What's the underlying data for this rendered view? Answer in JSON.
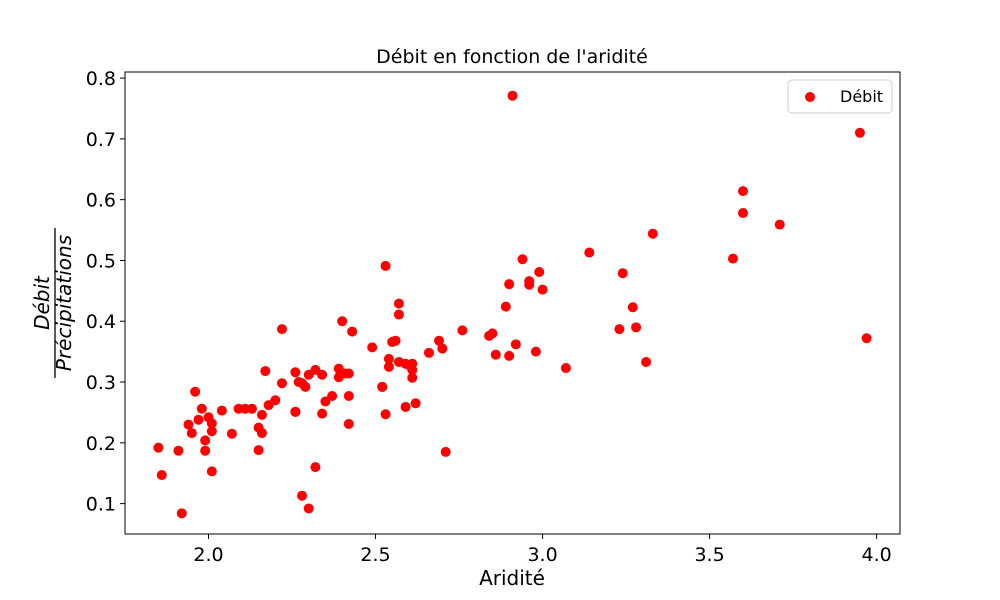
{
  "chart_data": {
    "type": "scatter",
    "title": "Débit en fonction de l'aridité",
    "xlabel": "Aridité",
    "ylabel": {
      "numerator": "Débit",
      "denominator": "Précipitations"
    },
    "xlim": [
      1.75,
      4.07
    ],
    "ylim": [
      0.05,
      0.81
    ],
    "xticks": [
      2.0,
      2.5,
      3.0,
      3.5,
      4.0
    ],
    "xtick_labels": [
      "2.0",
      "2.5",
      "3.0",
      "3.5",
      "4.0"
    ],
    "yticks": [
      0.1,
      0.2,
      0.3,
      0.4,
      0.5,
      0.6,
      0.7,
      0.8
    ],
    "ytick_labels": [
      "0.1",
      "0.2",
      "0.3",
      "0.4",
      "0.5",
      "0.6",
      "0.7",
      "0.8"
    ],
    "grid": false,
    "legend": {
      "position": "top-right",
      "entries": [
        "Débit"
      ]
    },
    "series": [
      {
        "name": "Débit",
        "color": "#ff0000",
        "points": [
          [
            1.85,
            0.192
          ],
          [
            1.86,
            0.147
          ],
          [
            1.91,
            0.187
          ],
          [
            1.92,
            0.084
          ],
          [
            1.94,
            0.23
          ],
          [
            1.95,
            0.216
          ],
          [
            1.96,
            0.284
          ],
          [
            1.97,
            0.238
          ],
          [
            1.98,
            0.256
          ],
          [
            1.99,
            0.187
          ],
          [
            1.99,
            0.204
          ],
          [
            2.0,
            0.242
          ],
          [
            2.01,
            0.153
          ],
          [
            2.01,
            0.232
          ],
          [
            2.01,
            0.219
          ],
          [
            2.04,
            0.253
          ],
          [
            2.07,
            0.215
          ],
          [
            2.09,
            0.256
          ],
          [
            2.11,
            0.256
          ],
          [
            2.13,
            0.256
          ],
          [
            2.15,
            0.225
          ],
          [
            2.15,
            0.188
          ],
          [
            2.16,
            0.246
          ],
          [
            2.16,
            0.216
          ],
          [
            2.17,
            0.318
          ],
          [
            2.18,
            0.262
          ],
          [
            2.2,
            0.27
          ],
          [
            2.22,
            0.298
          ],
          [
            2.22,
            0.387
          ],
          [
            2.26,
            0.316
          ],
          [
            2.26,
            0.251
          ],
          [
            2.26,
            0.251
          ],
          [
            2.27,
            0.3
          ],
          [
            2.28,
            0.113
          ],
          [
            2.28,
            0.298
          ],
          [
            2.29,
            0.292
          ],
          [
            2.3,
            0.092
          ],
          [
            2.3,
            0.312
          ],
          [
            2.32,
            0.16
          ],
          [
            2.32,
            0.32
          ],
          [
            2.34,
            0.312
          ],
          [
            2.34,
            0.248
          ],
          [
            2.35,
            0.268
          ],
          [
            2.37,
            0.277
          ],
          [
            2.39,
            0.308
          ],
          [
            2.39,
            0.322
          ],
          [
            2.4,
            0.4
          ],
          [
            2.41,
            0.314
          ],
          [
            2.42,
            0.314
          ],
          [
            2.42,
            0.277
          ],
          [
            2.42,
            0.231
          ],
          [
            2.43,
            0.383
          ],
          [
            2.49,
            0.357
          ],
          [
            2.52,
            0.292
          ],
          [
            2.52,
            0.292
          ],
          [
            2.53,
            0.247
          ],
          [
            2.53,
            0.491
          ],
          [
            2.54,
            0.325
          ],
          [
            2.54,
            0.338
          ],
          [
            2.55,
            0.366
          ],
          [
            2.56,
            0.368
          ],
          [
            2.57,
            0.411
          ],
          [
            2.57,
            0.333
          ],
          [
            2.57,
            0.429
          ],
          [
            2.59,
            0.259
          ],
          [
            2.59,
            0.33
          ],
          [
            2.6,
            0.328
          ],
          [
            2.61,
            0.33
          ],
          [
            2.61,
            0.307
          ],
          [
            2.61,
            0.32
          ],
          [
            2.62,
            0.265
          ],
          [
            2.66,
            0.348
          ],
          [
            2.69,
            0.368
          ],
          [
            2.7,
            0.355
          ],
          [
            2.71,
            0.185
          ],
          [
            2.76,
            0.385
          ],
          [
            2.84,
            0.376
          ],
          [
            2.85,
            0.38
          ],
          [
            2.86,
            0.345
          ],
          [
            2.89,
            0.424
          ],
          [
            2.9,
            0.343
          ],
          [
            2.9,
            0.461
          ],
          [
            2.91,
            0.771
          ],
          [
            2.92,
            0.362
          ],
          [
            2.94,
            0.502
          ],
          [
            2.96,
            0.46
          ],
          [
            2.96,
            0.466
          ],
          [
            2.98,
            0.35
          ],
          [
            2.99,
            0.481
          ],
          [
            3.0,
            0.452
          ],
          [
            3.07,
            0.323
          ],
          [
            3.14,
            0.513
          ],
          [
            3.23,
            0.387
          ],
          [
            3.24,
            0.479
          ],
          [
            3.27,
            0.423
          ],
          [
            3.28,
            0.39
          ],
          [
            3.31,
            0.333
          ],
          [
            3.33,
            0.544
          ],
          [
            3.57,
            0.503
          ],
          [
            3.6,
            0.578
          ],
          [
            3.6,
            0.614
          ],
          [
            3.71,
            0.559
          ],
          [
            3.95,
            0.71
          ],
          [
            3.97,
            0.372
          ]
        ]
      }
    ]
  }
}
